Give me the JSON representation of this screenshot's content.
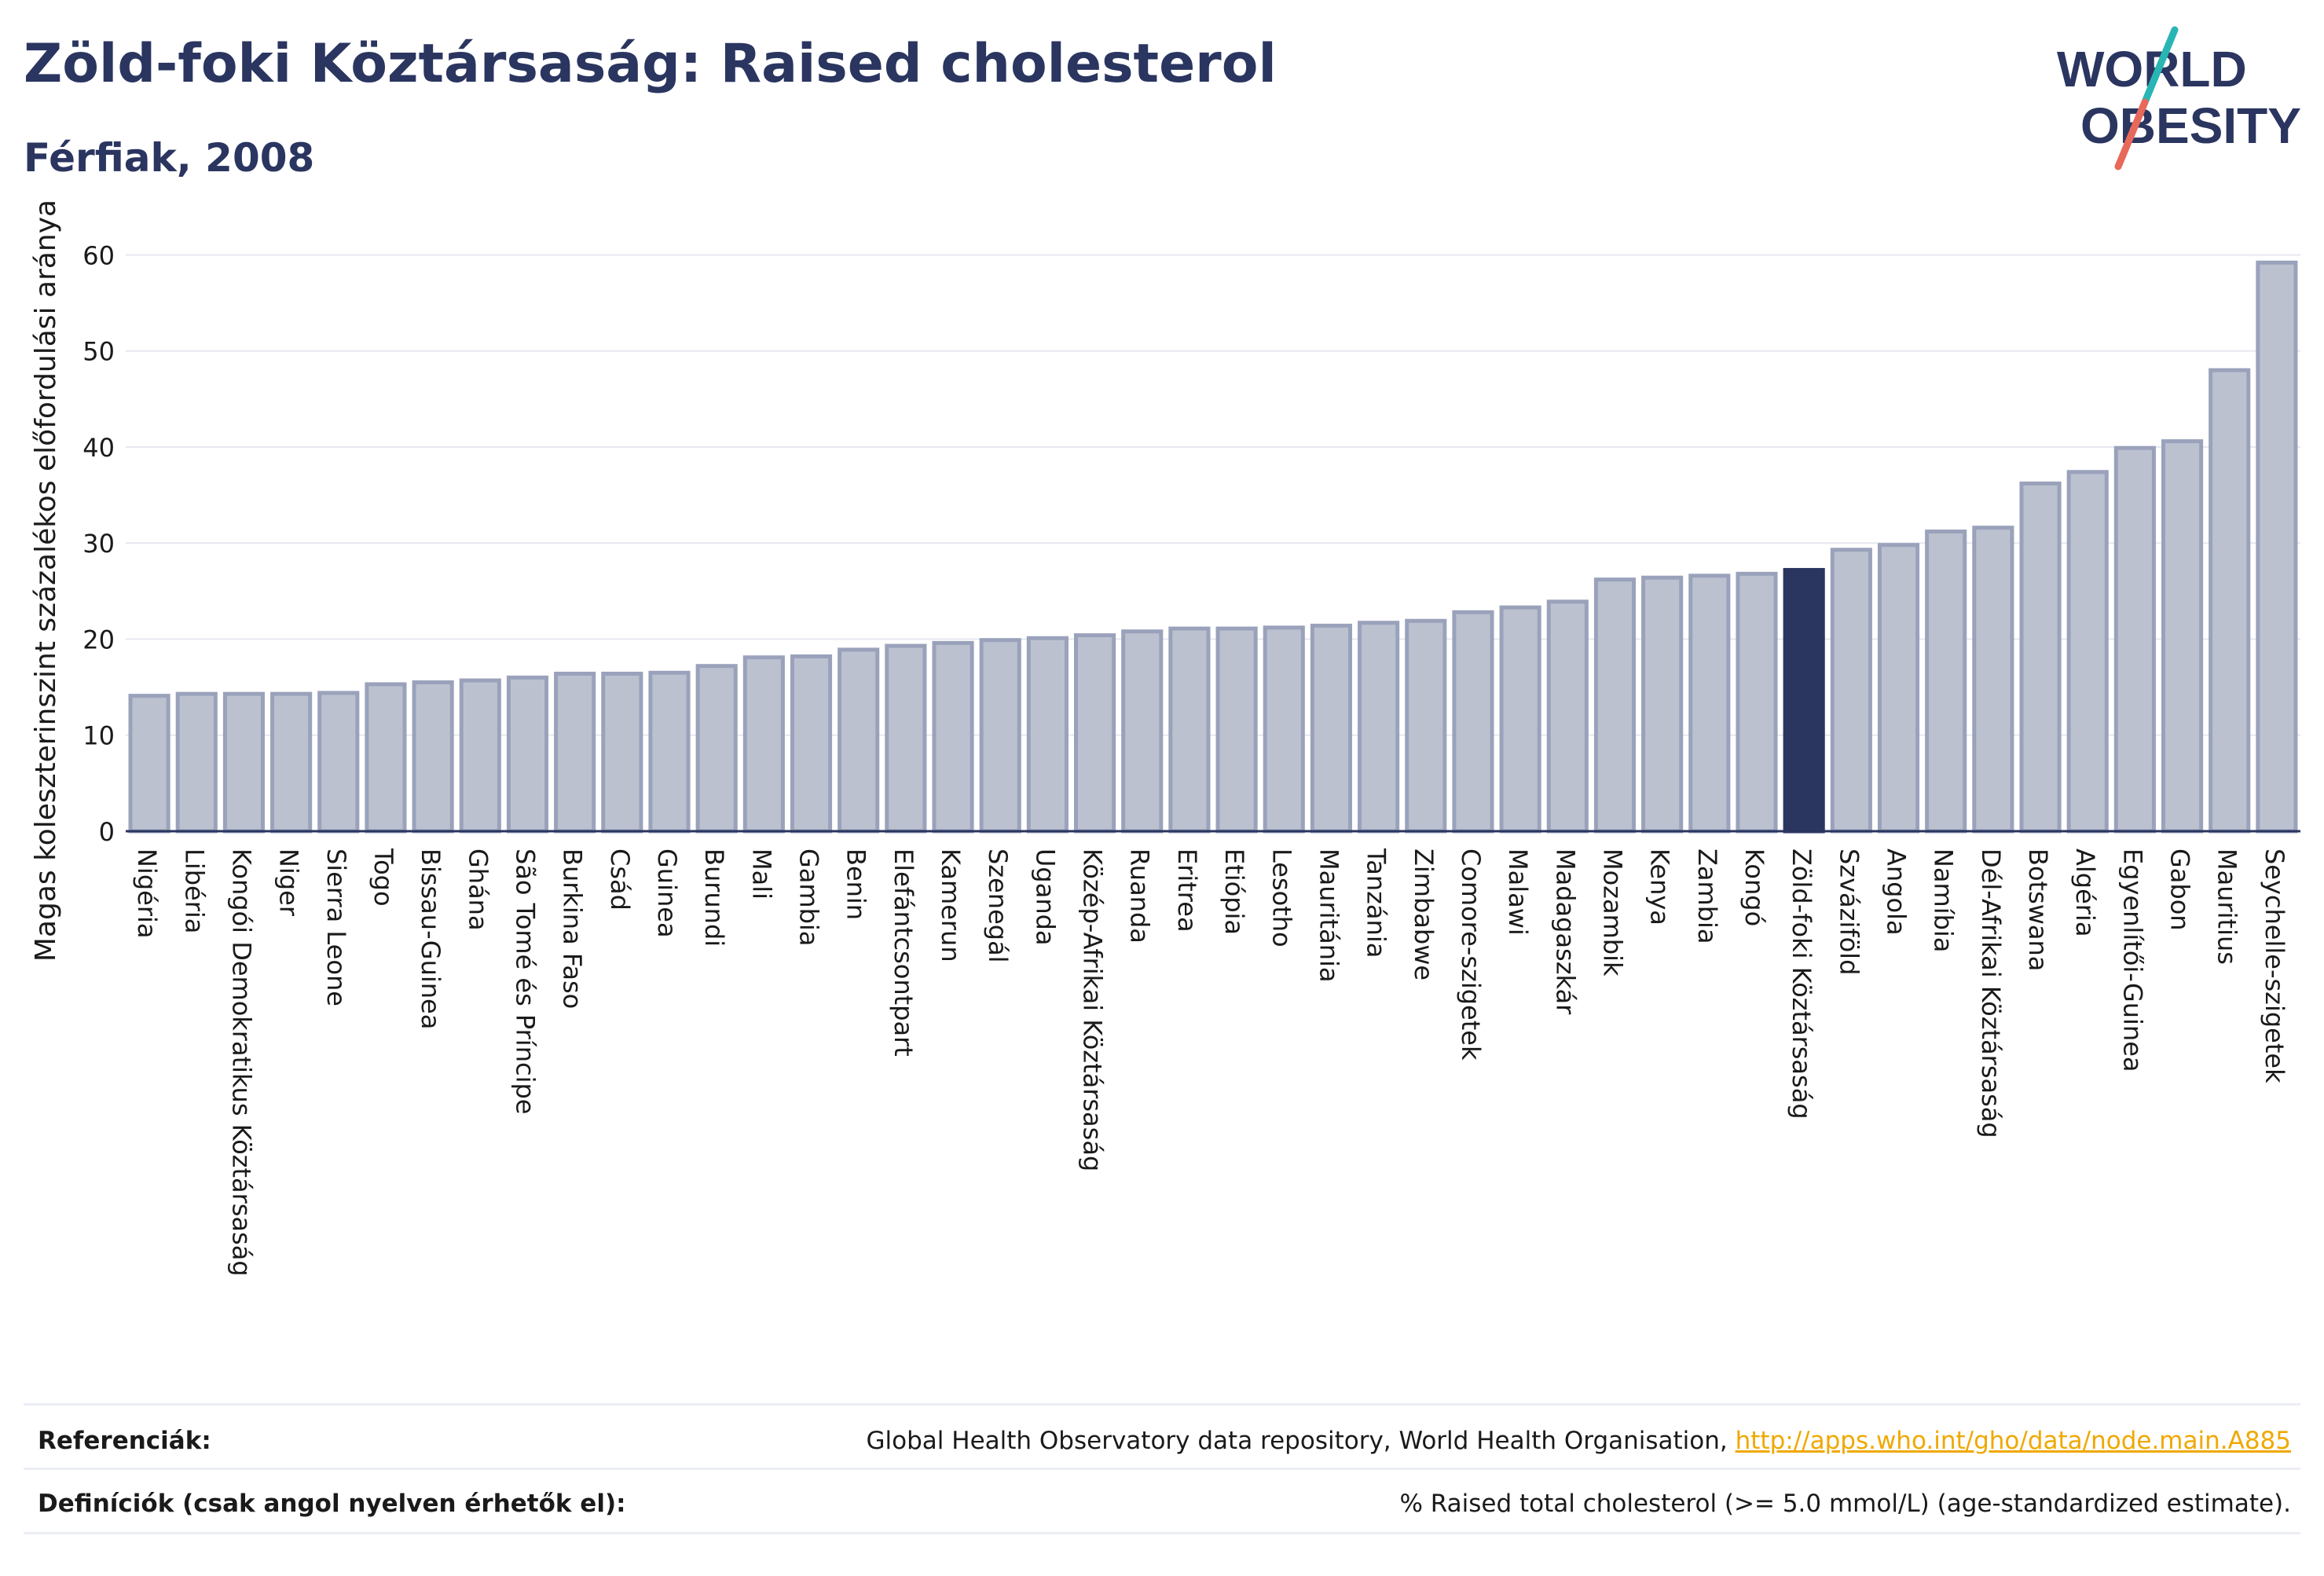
{
  "header": {
    "title": "Zöld-foki Köztársaság: Raised cholesterol",
    "subtitle": "Férfiak, 2008"
  },
  "logo": {
    "line1": "WORLD",
    "line2": "OBESITY",
    "colors": {
      "text": "#2a3560",
      "slash_teal": "#2ab5b5",
      "slash_red": "#e8685a"
    }
  },
  "colors": {
    "bar_fill": "#bcc1d0",
    "bar_stroke": "#9aa2bb",
    "highlight": "#2a3560",
    "grid": "#e6e8ef",
    "axis": "#2a3560"
  },
  "chart_data": {
    "type": "bar",
    "ylabel": "Magas koleszterinszint százalékos előfordulási aránya",
    "ylim": [
      0,
      62
    ],
    "yticks": [
      0,
      10,
      20,
      30,
      40,
      50,
      60
    ],
    "grid": true,
    "highlight": "Zöld-foki Köztársaság",
    "categories": [
      "Nigéria",
      "Libéria",
      "Kongói Demokratikus Köztársaság",
      "Niger",
      "Sierra Leone",
      "Togo",
      "Bissau-Guinea",
      "Ghána",
      "São Tomé és Príncipe",
      "Burkina Faso",
      "Csád",
      "Guinea",
      "Burundi",
      "Mali",
      "Gambia",
      "Benin",
      "Elefántcsontpart",
      "Kamerun",
      "Szenegál",
      "Uganda",
      "Közép-Afrikai Köztársaság",
      "Ruanda",
      "Eritrea",
      "Etiópia",
      "Lesotho",
      "Mauritánia",
      "Tanzánia",
      "Zimbabwe",
      "Comore-szigetek",
      "Malawi",
      "Madagaszkár",
      "Mozambik",
      "Kenya",
      "Zambia",
      "Kongó",
      "Zöld-foki Köztársaság",
      "Szváziföld",
      "Angola",
      "Namíbia",
      "Dél-Afrikai Köztársaság",
      "Botswana",
      "Algéria",
      "Egyenlítői-Guinea",
      "Gabon",
      "Mauritius",
      "Seychelle-szigetek"
    ],
    "values": [
      14.1,
      14.3,
      14.3,
      14.3,
      14.4,
      15.3,
      15.5,
      15.7,
      16.0,
      16.4,
      16.4,
      16.5,
      17.2,
      18.1,
      18.2,
      18.9,
      19.3,
      19.6,
      19.9,
      20.1,
      20.4,
      20.8,
      21.1,
      21.1,
      21.2,
      21.4,
      21.7,
      21.9,
      22.8,
      23.3,
      23.9,
      26.2,
      26.4,
      26.6,
      26.8,
      27.2,
      29.3,
      29.8,
      31.2,
      31.6,
      36.2,
      37.4,
      39.9,
      40.6,
      48.0,
      59.2
    ]
  },
  "footer": {
    "references_label": "Referenciák:",
    "references_text": "Global Health Observatory data repository, World Health Organisation,",
    "references_link": "http://apps.who.int/gho/data/node.main.A885",
    "definitions_label": "Definíciók (csak angol nyelven érhetők el):",
    "definitions_text": "% Raised total cholesterol (>= 5.0 mmol/L) (age-standardized estimate)."
  }
}
